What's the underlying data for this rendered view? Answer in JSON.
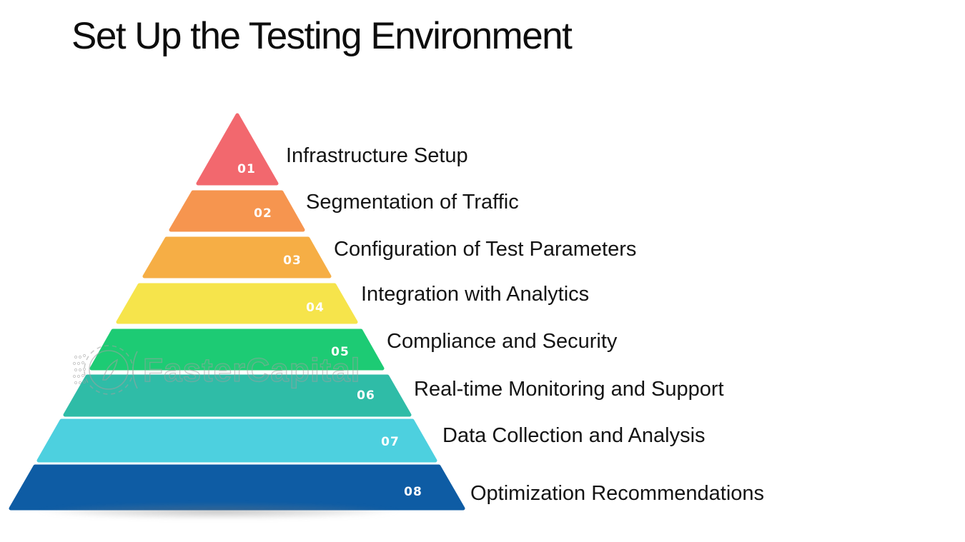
{
  "title": "Set Up the Testing Environment",
  "watermark": {
    "brand": "FasterCapital",
    "gear_icon_color": "#a0a0a0"
  },
  "diagram": {
    "type": "pyramid",
    "levels": [
      {
        "num": "01",
        "label": "Infrastructure Setup",
        "color": "#F2686E"
      },
      {
        "num": "02",
        "label": "Segmentation of Traffic",
        "color": "#F6954F"
      },
      {
        "num": "03",
        "label": "Configuration of Test Parameters",
        "color": "#F6AE45"
      },
      {
        "num": "04",
        "label": "Integration with Analytics",
        "color": "#F6E44B"
      },
      {
        "num": "05",
        "label": "Compliance and Security",
        "color": "#1DCB74"
      },
      {
        "num": "06",
        "label": "Real-time Monitoring and Support",
        "color": "#2FBCA7"
      },
      {
        "num": "07",
        "label": "Data Collection and Analysis",
        "color": "#4DD0DF"
      },
      {
        "num": "08",
        "label": "Optimization Recommendations",
        "color": "#0E5CA4"
      }
    ],
    "number_text_color": "#ffffff",
    "label_text_color": "#141414"
  }
}
